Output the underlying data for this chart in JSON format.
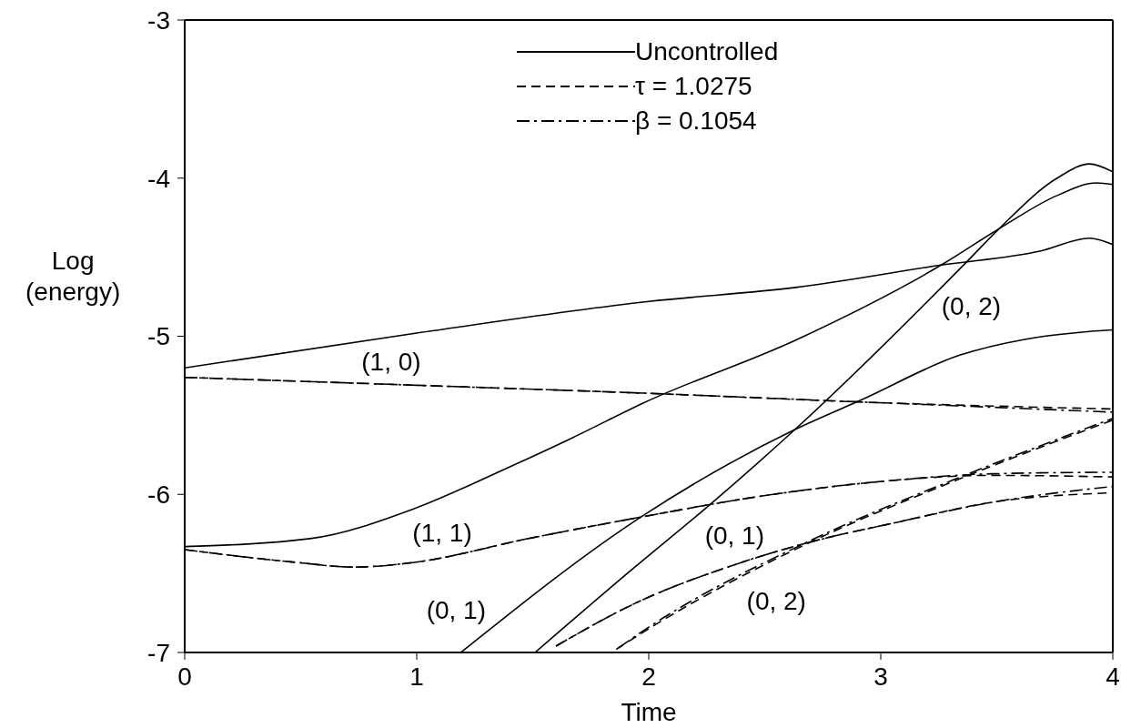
{
  "chart_data": {
    "type": "line",
    "xlabel": "Time",
    "ylabel": "Log (energy)",
    "xlim": [
      0,
      4
    ],
    "xticks": [
      0,
      1,
      2,
      3,
      4
    ],
    "ylim": [
      -7,
      -3
    ],
    "yticks": [
      -7,
      -6,
      -5,
      -4,
      -3
    ],
    "legend": "top",
    "marker": "none",
    "series": [
      {
        "name": "Uncontrolled",
        "line_style": "solid",
        "color": "#000000",
        "x": [
          0,
          1,
          2,
          2.64,
          3.26,
          3.69,
          3.9,
          4
        ],
        "values": [
          -5.2,
          -4.98,
          -4.78,
          -4.69,
          -4.55,
          -4.46,
          -4.38,
          -4.42
        ]
      },
      {
        "line_style": "solid",
        "color": "#000000",
        "x": [
          0,
          0.54,
          0.99,
          1.38,
          1.66,
          1.98,
          2.64,
          3.26,
          3.51,
          3.76,
          3.93,
          4
        ],
        "values": [
          -6.33,
          -6.28,
          -6.09,
          -5.84,
          -5.65,
          -5.42,
          -5.02,
          -4.55,
          -4.32,
          -4.11,
          -4.03,
          -4.04
        ]
      },
      {
        "line_style": "solid",
        "color": "#000000",
        "x": [
          1.51,
          1.94,
          2.26,
          2.63,
          3.37,
          3.51,
          3.76,
          3.9,
          4
        ],
        "values": [
          -7,
          -6.46,
          -6.07,
          -5.59,
          -4.53,
          -4.32,
          -4,
          -3.91,
          -3.96
        ]
      },
      {
        "line_style": "solid",
        "color": "#000000",
        "x": [
          1.19,
          1.98,
          2.63,
          2.92,
          3.34,
          3.62,
          3.9,
          4
        ],
        "values": [
          -7,
          -6.13,
          -5.59,
          -5.4,
          -5.12,
          -5.02,
          -4.97,
          -4.96
        ]
      },
      {
        "name": "τ = 1.0275",
        "line_style": "dashed",
        "color": "#000000",
        "x": [
          0,
          1,
          1.98,
          2.99,
          4
        ],
        "values": [
          -5.26,
          -5.31,
          -5.36,
          -5.42,
          -5.46
        ]
      },
      {
        "line_style": "dashed",
        "color": "#000000",
        "x": [
          0,
          0.48,
          0.73,
          0.99,
          1.48,
          1.98,
          2.49,
          2.99,
          3.48,
          4
        ],
        "values": [
          -6.35,
          -6.43,
          -6.46,
          -6.43,
          -6.28,
          -6.14,
          -6.01,
          -5.92,
          -5.88,
          -5.89
        ]
      },
      {
        "line_style": "dashed",
        "color": "#000000",
        "x": [
          1.6,
          1.94,
          2.36,
          2.7,
          3.06,
          3.48,
          4
        ],
        "values": [
          -6.96,
          -6.69,
          -6.45,
          -6.3,
          -6.18,
          -6.05,
          -5.99
        ]
      },
      {
        "line_style": "dashed",
        "color": "#000000",
        "x": [
          1.86,
          2,
          2.7,
          3.31,
          4
        ],
        "values": [
          -6.98,
          -6.85,
          -6.3,
          -5.92,
          -5.53
        ]
      },
      {
        "name": "β = 0.1054",
        "line_style": "dashdot",
        "color": "#000000",
        "x": [
          0,
          1,
          1.98,
          2.99,
          4
        ],
        "values": [
          -5.26,
          -5.31,
          -5.36,
          -5.42,
          -5.48
        ]
      },
      {
        "line_style": "dashdot",
        "color": "#000000",
        "x": [
          0,
          0.48,
          0.73,
          0.99,
          1.48,
          1.98,
          2.49,
          2.99,
          3.48,
          4
        ],
        "values": [
          -6.35,
          -6.43,
          -6.46,
          -6.43,
          -6.28,
          -6.14,
          -6.01,
          -5.92,
          -5.87,
          -5.86
        ]
      },
      {
        "line_style": "dashdot",
        "color": "#000000",
        "x": [
          1.6,
          1.94,
          2.36,
          2.7,
          3.06,
          3.48,
          4
        ],
        "values": [
          -6.96,
          -6.69,
          -6.45,
          -6.3,
          -6.18,
          -6.05,
          -5.95
        ]
      },
      {
        "line_style": "dashdot",
        "color": "#000000",
        "x": [
          1.87,
          2,
          2.7,
          3.31,
          4
        ],
        "values": [
          -6.97,
          -6.84,
          -6.29,
          -5.91,
          -5.52
        ]
      }
    ],
    "annotations": [
      "(1, 0)",
      "(1, 1)",
      "(0, 1)",
      "(0, 2)",
      "(0, 1)",
      "(0, 2)"
    ]
  }
}
